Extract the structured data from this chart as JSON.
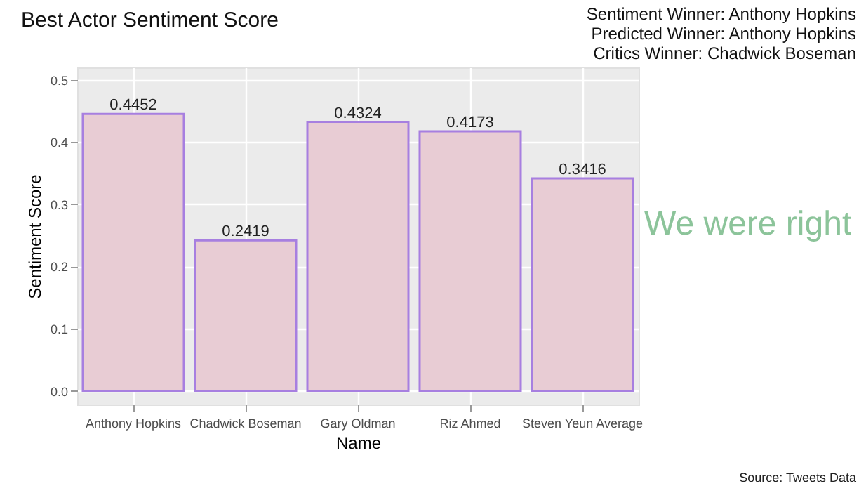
{
  "chart_data": {
    "type": "bar",
    "title": "Best Actor Sentiment Score",
    "xlabel": "Name",
    "ylabel": "Sentiment Score",
    "categories": [
      "Anthony Hopkins",
      "Chadwick Boseman",
      "Gary Oldman",
      "Riz Ahmed",
      "Steven Yeun Average"
    ],
    "values": [
      0.4452,
      0.2419,
      0.4324,
      0.4173,
      0.3416
    ],
    "color": "#e8ccd4",
    "data_labels": true,
    "ylim": [
      -0.022,
      0.52
    ],
    "yticks": [
      {
        "value": 0,
        "label": "0.0"
      },
      {
        "value": 0.1,
        "label": "0.1"
      },
      {
        "value": 0.2,
        "label": "0.2"
      },
      {
        "value": 0.3,
        "label": "0.3"
      },
      {
        "value": 0.4,
        "label": "0.4"
      },
      {
        "value": 0.5,
        "label": "0.5"
      }
    ],
    "grid": true,
    "annotations": [
      "Sentiment Winner: Anthony Hopkins",
      "Predicted Winner: Anthony Hopkins",
      "Critics Winner: Chadwick Boseman",
      "We were right",
      "Source: Tweets Data"
    ]
  }
}
